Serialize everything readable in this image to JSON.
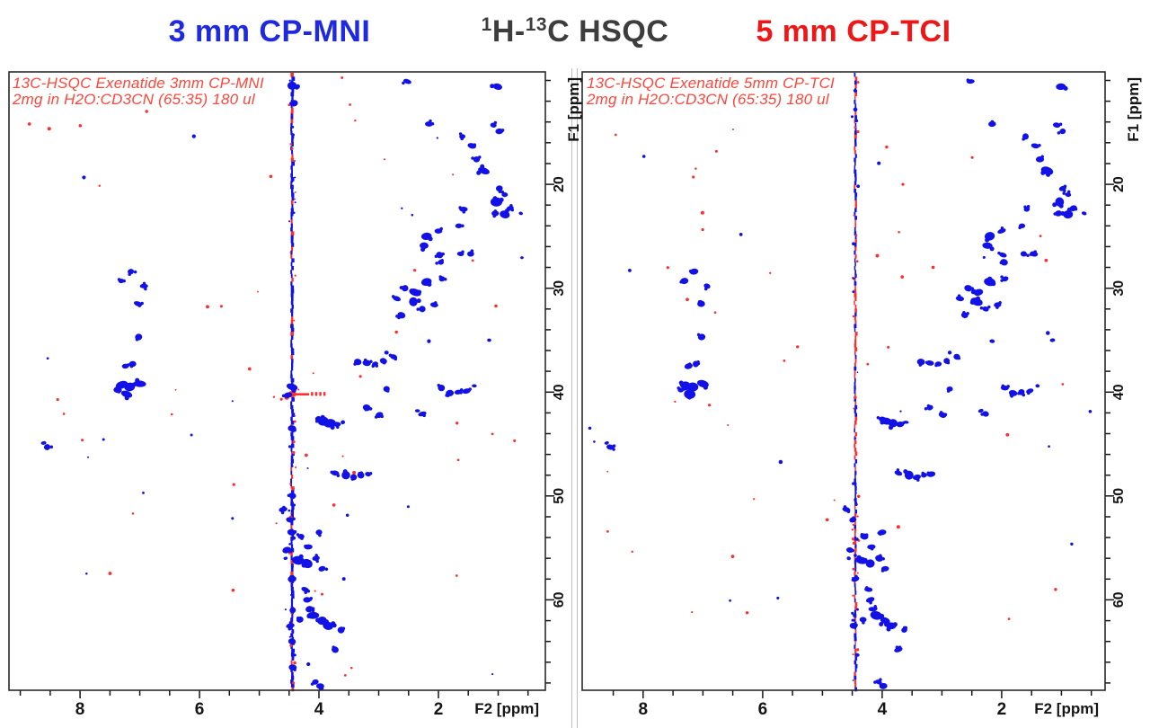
{
  "titles": {
    "left": "3 mm CP-MNI",
    "center": {
      "sup1": "1",
      "mid": "H-",
      "sup2": "13",
      "rest": "C HSQC"
    },
    "right": "5 mm CP-TCI"
  },
  "colors": {
    "title_left": "#1f2ae0",
    "title_center": "#3d3d3d",
    "title_right": "#ed1717",
    "peak_blue": "#1212e8",
    "noise_red": "#ff2d2d",
    "annotation_red": "#ff463a",
    "axis": "#161616",
    "separator": "#bdbdbd"
  },
  "chart_data": {
    "type": "scatter",
    "description": "Two-panel 1H-13C HSQC NMR spectra of Exenatide comparing a 3 mm CP-MNI probe and a 5 mm CP-TCI probe; blue cross-peaks, red noise, vertical water t1-noise ridge at 4.45 ppm",
    "xlabel": "F2 [ppm]",
    "ylabel": "F1 [ppm]",
    "f1_axis": {
      "top_ppm": 9.18,
      "bottom_ppm": 68.7,
      "major_ticks": [
        20,
        30,
        40,
        50,
        60
      ],
      "minor_start": 10,
      "minor_end": 68,
      "minor_step": 2
    },
    "f2_axis": {
      "major_ticks": [
        8,
        6,
        4,
        2
      ],
      "minor_step": 0.5
    },
    "water_ridge_ppm": 4.45,
    "cross_peaks_ppm": [
      [
        2.52,
        10.1,
        2
      ],
      [
        1.01,
        10.6,
        3
      ],
      [
        2.16,
        14.2,
        2
      ],
      [
        1.08,
        14.3,
        2
      ],
      [
        0.98,
        14.9,
        2
      ],
      [
        1.6,
        15.4,
        2
      ],
      [
        1.44,
        16.3,
        2
      ],
      [
        1.36,
        17.6,
        2
      ],
      [
        1.24,
        18.7,
        3
      ],
      [
        0.98,
        20.4,
        2
      ],
      [
        0.89,
        21.0,
        2
      ],
      [
        1.03,
        21.7,
        3
      ],
      [
        1.05,
        22.8,
        2
      ],
      [
        0.89,
        22.9,
        3
      ],
      [
        0.8,
        22.3,
        2
      ],
      [
        1.58,
        22.4,
        2
      ],
      [
        1.66,
        24.0,
        2
      ],
      [
        0.62,
        22.8,
        1
      ],
      [
        2.0,
        24.5,
        2
      ],
      [
        2.2,
        25.0,
        3
      ],
      [
        2.24,
        25.9,
        3
      ],
      [
        1.98,
        26.8,
        2
      ],
      [
        1.63,
        26.7,
        2
      ],
      [
        1.46,
        26.7,
        2
      ],
      [
        1.96,
        27.5,
        2
      ],
      [
        2.2,
        29.4,
        3
      ],
      [
        1.94,
        29.1,
        2
      ],
      [
        2.56,
        30.0,
        2
      ],
      [
        2.39,
        30.4,
        3
      ],
      [
        2.42,
        31.3,
        3
      ],
      [
        2.7,
        31.0,
        2
      ],
      [
        2.27,
        32.0,
        2
      ],
      [
        2.07,
        31.6,
        2
      ],
      [
        2.62,
        32.6,
        2
      ],
      [
        1.15,
        35.0,
        1
      ],
      [
        7.15,
        28.4,
        2
      ],
      [
        7.31,
        29.3,
        2
      ],
      [
        6.93,
        29.8,
        2
      ],
      [
        7.03,
        31.5,
        2
      ],
      [
        7.02,
        34.7,
        2
      ],
      [
        7.12,
        37.3,
        2
      ],
      [
        7.24,
        37.5,
        2
      ],
      [
        7.0,
        39.2,
        3
      ],
      [
        7.17,
        39.5,
        3
      ],
      [
        7.3,
        39.3,
        3
      ],
      [
        7.22,
        40.2,
        3
      ],
      [
        7.37,
        39.8,
        2
      ],
      [
        8.55,
        45.3,
        2
      ],
      [
        8.61,
        44.9,
        1
      ],
      [
        3.35,
        37.1,
        2
      ],
      [
        3.2,
        37.2,
        2
      ],
      [
        3.06,
        37.3,
        2
      ],
      [
        2.92,
        37.0,
        2
      ],
      [
        2.75,
        36.6,
        2
      ],
      [
        2.87,
        36.2,
        1
      ],
      [
        2.16,
        35.1,
        1
      ],
      [
        2.87,
        39.7,
        2
      ],
      [
        1.95,
        39.6,
        2
      ],
      [
        1.81,
        40.1,
        2
      ],
      [
        1.67,
        40.0,
        2
      ],
      [
        1.53,
        39.9,
        2
      ],
      [
        1.4,
        39.4,
        1
      ],
      [
        3.2,
        41.5,
        2
      ],
      [
        2.99,
        42.2,
        2
      ],
      [
        2.27,
        42.1,
        2
      ],
      [
        2.35,
        41.8,
        1
      ],
      [
        3.93,
        42.8,
        3
      ],
      [
        3.82,
        43.0,
        3
      ],
      [
        3.7,
        43.1,
        2
      ],
      [
        4.0,
        42.6,
        2
      ],
      [
        3.6,
        42.9,
        1
      ],
      [
        3.73,
        47.8,
        2
      ],
      [
        3.55,
        48.0,
        3
      ],
      [
        3.42,
        48.2,
        2
      ],
      [
        3.3,
        48.0,
        2
      ],
      [
        3.18,
        47.9,
        2
      ],
      [
        4.6,
        51.3,
        2
      ],
      [
        4.49,
        52.3,
        2
      ],
      [
        4.3,
        53.9,
        2
      ],
      [
        4.0,
        53.5,
        2
      ],
      [
        4.18,
        54.9,
        2
      ],
      [
        4.54,
        55.2,
        2
      ],
      [
        4.35,
        56.2,
        3
      ],
      [
        4.2,
        56.5,
        3
      ],
      [
        4.05,
        56.0,
        2
      ],
      [
        3.95,
        57.0,
        2
      ],
      [
        4.56,
        56.0,
        1
      ],
      [
        4.45,
        58.0,
        2
      ],
      [
        4.23,
        59.0,
        2
      ],
      [
        4.2,
        60.0,
        2
      ],
      [
        4.16,
        60.9,
        2
      ],
      [
        4.1,
        61.5,
        3
      ],
      [
        3.95,
        62.0,
        3
      ],
      [
        3.85,
        62.5,
        3
      ],
      [
        3.63,
        62.9,
        2
      ],
      [
        4.32,
        61.9,
        2
      ],
      [
        4.48,
        62.5,
        2
      ],
      [
        3.73,
        64.8,
        2
      ],
      [
        4.42,
        65.3,
        1
      ],
      [
        4.06,
        67.9,
        2
      ],
      [
        3.98,
        68.3,
        2
      ]
    ],
    "panels": [
      {
        "id": "left",
        "annotation": [
          "13C-HSQC Exenatide 3mm CP-MNI",
          "2mg in H2O:CD3CN (65:35) 180 ul"
        ],
        "f2_left_ppm": 9.19,
        "f2_right_ppm": 0.21,
        "ridge_style": "solid-blue-with-red-flecks",
        "ridge_extra_peaks": [
          [
            4.45,
            10.5,
            3
          ],
          [
            4.42,
            12.2,
            2
          ],
          [
            4.45,
            39.5,
            3
          ],
          [
            4.52,
            40.3,
            2
          ],
          [
            4.45,
            43.5,
            2
          ],
          [
            4.44,
            50.0,
            2
          ],
          [
            4.46,
            53.5,
            2
          ],
          [
            4.44,
            61.0,
            2
          ],
          [
            4.45,
            64.0,
            2
          ],
          [
            4.44,
            66.5,
            2
          ]
        ],
        "water_artifact_label": true
      },
      {
        "id": "right",
        "annotation": [
          "13C-HSQC Exenatide  5mm CP-TCI",
          "2mg in H2O:CD3CN (65:35) 180 ul"
        ],
        "f2_left_ppm": 9.02,
        "f2_right_ppm": 0.27,
        "ridge_style": "dashed-red-blue",
        "ridge_extra_peaks": [
          [
            4.45,
            11.0,
            1
          ],
          [
            4.45,
            12.8,
            1
          ]
        ],
        "water_artifact_label": false
      }
    ]
  }
}
